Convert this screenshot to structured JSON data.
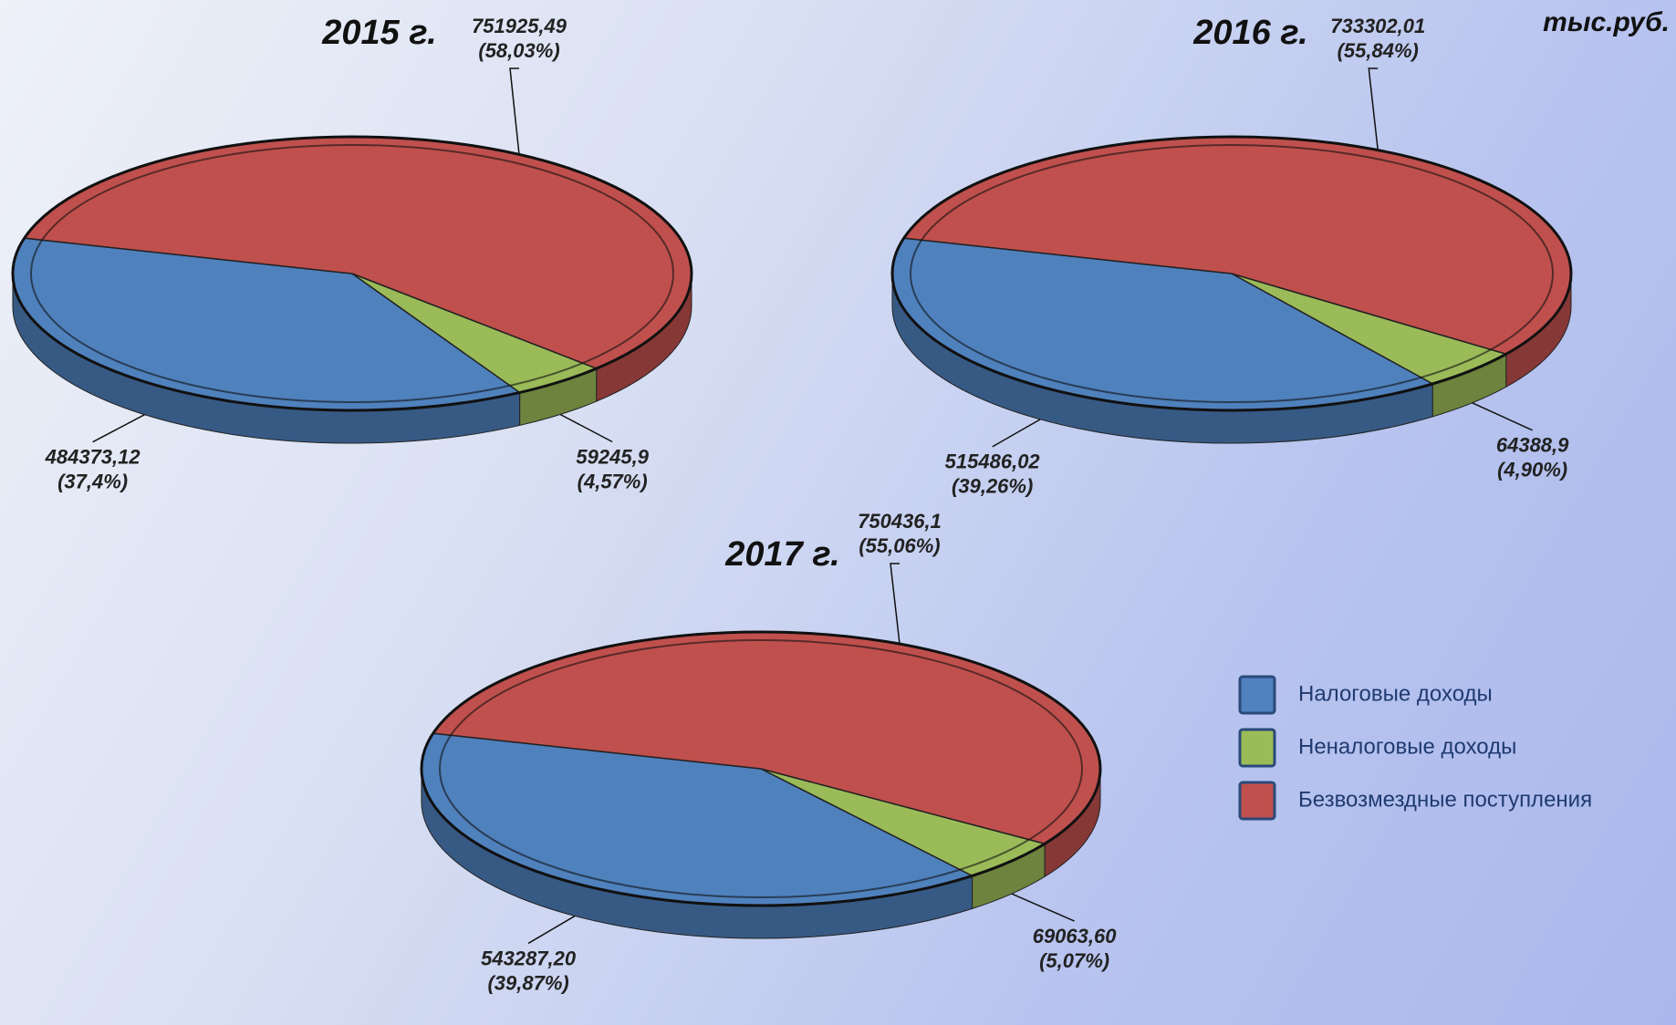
{
  "unit": "тыс.руб.",
  "legend": {
    "items": [
      {
        "name": "Налоговые доходы",
        "color": "#4f81bd"
      },
      {
        "name": "Неналоговые доходы",
        "color": "#9bbb59"
      },
      {
        "name": "Безвозмездные поступления",
        "color": "#c0504d"
      }
    ]
  },
  "chart_data": [
    {
      "type": "pie",
      "title": "2015 г.",
      "values": [
        484373.12,
        59245.9,
        751925.49
      ],
      "value_labels": [
        "484373,12",
        "59245,9",
        "751925,49"
      ],
      "percents": [
        37.4,
        4.57,
        58.03
      ],
      "percent_labels": [
        "(37,4%)",
        "(4,57%)",
        "(58,03%)"
      ]
    },
    {
      "type": "pie",
      "title": "2016 г.",
      "values": [
        515486.02,
        64388.9,
        733302.01
      ],
      "value_labels": [
        "515486,02",
        "64388,9",
        "733302,01"
      ],
      "percents": [
        39.26,
        4.9,
        55.84
      ],
      "percent_labels": [
        "(39,26%)",
        "(4,90%)",
        "(55,84%)"
      ]
    },
    {
      "type": "pie",
      "title": "2017 г.",
      "values": [
        543287.2,
        69063.6,
        750436.1
      ],
      "value_labels": [
        "543287,20",
        "69063,60",
        "750436,1"
      ],
      "percents": [
        39.87,
        5.07,
        55.06
      ],
      "percent_labels": [
        "(39,87%)",
        "(5,07%)",
        "(55,06%)"
      ]
    }
  ]
}
